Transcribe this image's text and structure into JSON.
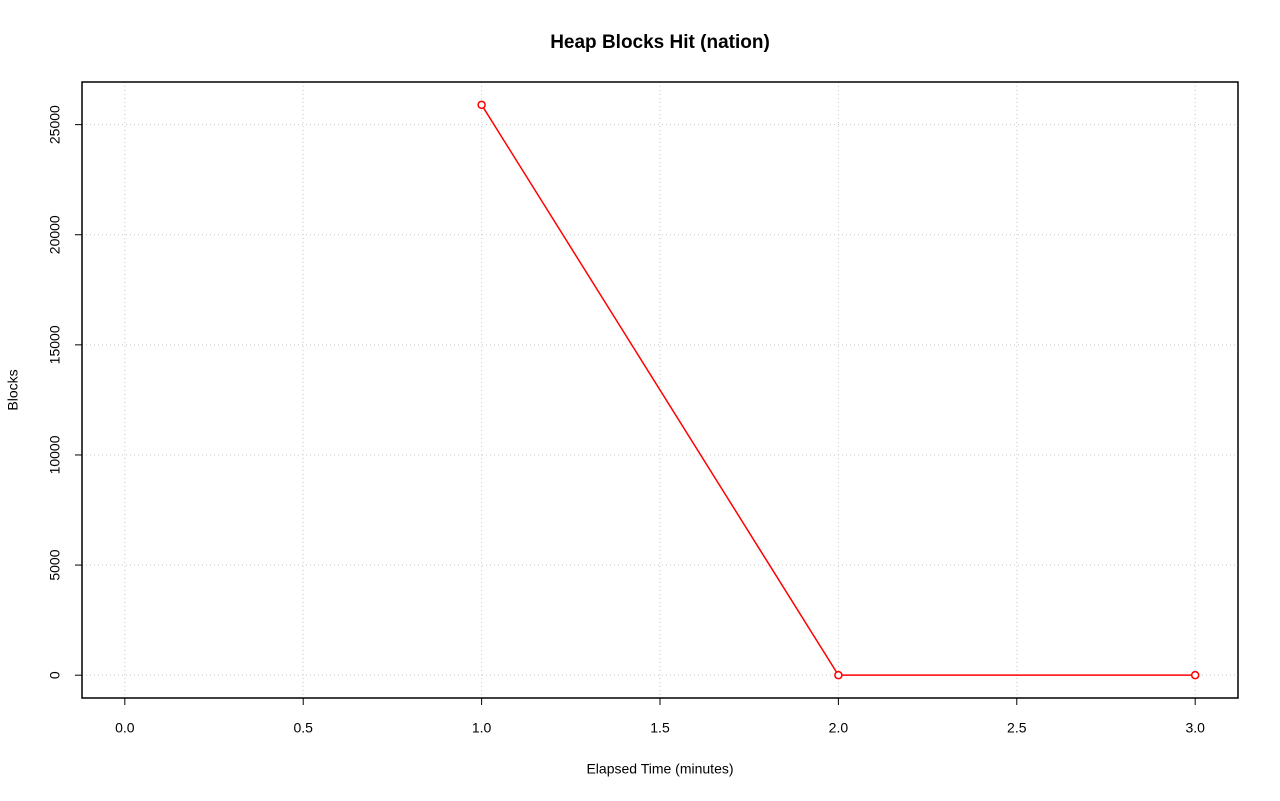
{
  "chart_data": {
    "type": "line",
    "title": "Heap Blocks Hit (nation)",
    "xlabel": "Elapsed Time (minutes)",
    "ylabel": "Blocks",
    "x": [
      1,
      2,
      3
    ],
    "values": [
      25900,
      0,
      0
    ],
    "color": "#ff0000",
    "markers": true,
    "xlim": [
      -0.12,
      3.12
    ],
    "ylim": [
      -1036,
      26936
    ],
    "xticks": [
      {
        "value": 0,
        "label": "0.0"
      },
      0.5,
      {
        "value": 1,
        "label": "1.0"
      },
      1.5,
      {
        "value": 2,
        "label": "2.0"
      },
      2.5,
      {
        "value": 3,
        "label": "3.0"
      }
    ],
    "yticks": [
      0,
      5000,
      10000,
      15000,
      20000,
      25000
    ],
    "grid": true
  }
}
